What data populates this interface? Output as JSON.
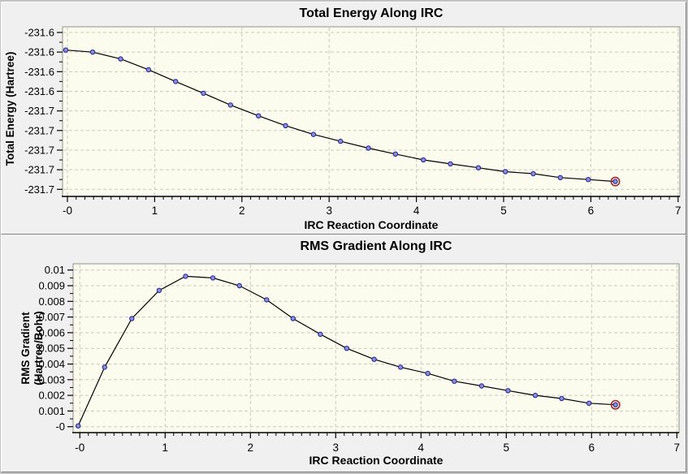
{
  "window": {
    "name": "IRC results plots"
  },
  "style": {
    "panel_bg": "#f0f0f0",
    "plot_bg": "#fcfcee",
    "frame_color": "#90908a",
    "grid_color": "#c9c9bc",
    "axis_color": "#000000",
    "tick_text_color": "#000000",
    "line_color": "#000000",
    "marker_fill": "#8a8eda",
    "marker_stroke": "#23238e",
    "selected_ring_color": "#9e2a28"
  },
  "chart_data": [
    {
      "type": "line",
      "title": "Total Energy Along IRC",
      "xlabel": "IRC Reaction Coordinate",
      "ylabel": "Total Energy (Hartree)",
      "x": [
        -0.02,
        0.29,
        0.61,
        0.93,
        1.24,
        1.56,
        1.87,
        2.19,
        2.5,
        2.82,
        3.13,
        3.45,
        3.76,
        4.08,
        4.39,
        4.71,
        5.02,
        5.34,
        5.65,
        5.97,
        6.28
      ],
      "y": [
        -231.598,
        -231.6,
        -231.607,
        -231.618,
        -231.63,
        -231.642,
        -231.654,
        -231.665,
        -231.675,
        -231.684,
        -231.691,
        -231.698,
        -231.704,
        -231.71,
        -231.714,
        -231.718,
        -231.722,
        -231.724,
        -231.728,
        -231.73,
        -231.732
      ],
      "xlim": [
        -0.06,
        7.03
      ],
      "ylim": [
        -231.748,
        -231.574
      ],
      "grid": true,
      "legend": null,
      "selected_point_index": 20,
      "xticks": {
        "values": [
          0,
          1,
          2,
          3,
          4,
          5,
          6,
          7
        ],
        "labels": [
          "-0",
          "1",
          "2",
          "3",
          "4",
          "5",
          "6",
          "7"
        ],
        "minor_step": 0.1
      },
      "yticks": {
        "values": [
          -231.58,
          -231.6,
          -231.62,
          -231.64,
          -231.66,
          -231.68,
          -231.7,
          -231.72,
          -231.74
        ],
        "labels": [
          "-231.6",
          "-231.6",
          "-231.6",
          "-231.6",
          "-231.7",
          "-231.7",
          "-231.7",
          "-231.7",
          "-231.7"
        ]
      }
    },
    {
      "type": "line",
      "title": "RMS Gradient Along IRC",
      "xlabel": "IRC Reaction Coordinate",
      "ylabel": "RMS Gradient\n(Hartree/Bohr)",
      "x": [
        -0.02,
        0.29,
        0.61,
        0.93,
        1.24,
        1.56,
        1.87,
        2.19,
        2.5,
        2.82,
        3.13,
        3.45,
        3.76,
        4.08,
        4.39,
        4.71,
        5.02,
        5.34,
        5.65,
        5.97,
        6.28
      ],
      "y": [
        5e-05,
        0.0038,
        0.0069,
        0.0087,
        0.0096,
        0.0095,
        0.009,
        0.0081,
        0.0069,
        0.0059,
        0.005,
        0.0043,
        0.0038,
        0.0034,
        0.0029,
        0.0026,
        0.0023,
        0.002,
        0.0018,
        0.0015,
        0.0014
      ],
      "xlim": [
        -0.08,
        7.04
      ],
      "ylim": [
        -0.0004,
        0.0104
      ],
      "grid": true,
      "legend": null,
      "selected_point_index": 20,
      "xticks": {
        "values": [
          0,
          1,
          2,
          3,
          4,
          5,
          6,
          7
        ],
        "labels": [
          "-0",
          "1",
          "2",
          "3",
          "4",
          "5",
          "6",
          "7"
        ],
        "minor_step": 0.1
      },
      "yticks": {
        "values": [
          0.01,
          0.009,
          0.008,
          0.007,
          0.006,
          0.005,
          0.004,
          0.003,
          0.002,
          0.001,
          0.0
        ],
        "labels": [
          "0.01",
          "0.009",
          "0.008",
          "0.007",
          "0.006",
          "0.005",
          "0.004",
          "0.003",
          "0.002",
          "0.001",
          "-0"
        ]
      }
    }
  ]
}
